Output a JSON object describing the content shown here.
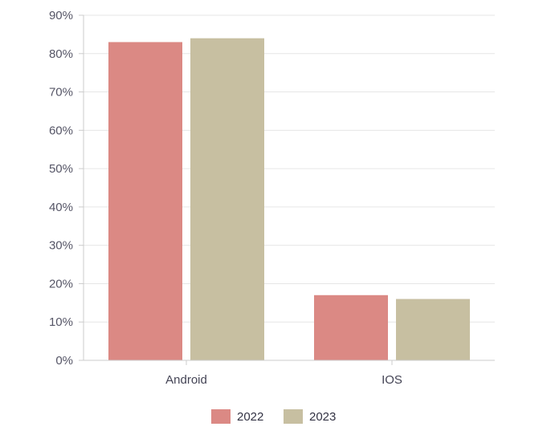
{
  "chart_data": {
    "type": "bar",
    "title": "",
    "xlabel": "",
    "ylabel": "",
    "categories": [
      "Android",
      "IOS"
    ],
    "series": [
      {
        "name": "2022",
        "values": [
          83,
          17
        ],
        "color": "#db8984"
      },
      {
        "name": "2023",
        "values": [
          84,
          16
        ],
        "color": "#c7bfa1"
      }
    ],
    "ylim": [
      0,
      90
    ],
    "y_ticks": [
      0,
      10,
      20,
      30,
      40,
      50,
      60,
      70,
      80,
      90
    ],
    "y_tick_labels": [
      "0%",
      "10%",
      "20%",
      "30%",
      "40%",
      "50%",
      "60%",
      "70%",
      "80%",
      "90%"
    ],
    "grid": true,
    "legend_position": "bottom-center",
    "colors": {
      "grid": "#e6e6e6",
      "axis": "#cccccc",
      "tick_text": "#555566"
    }
  }
}
